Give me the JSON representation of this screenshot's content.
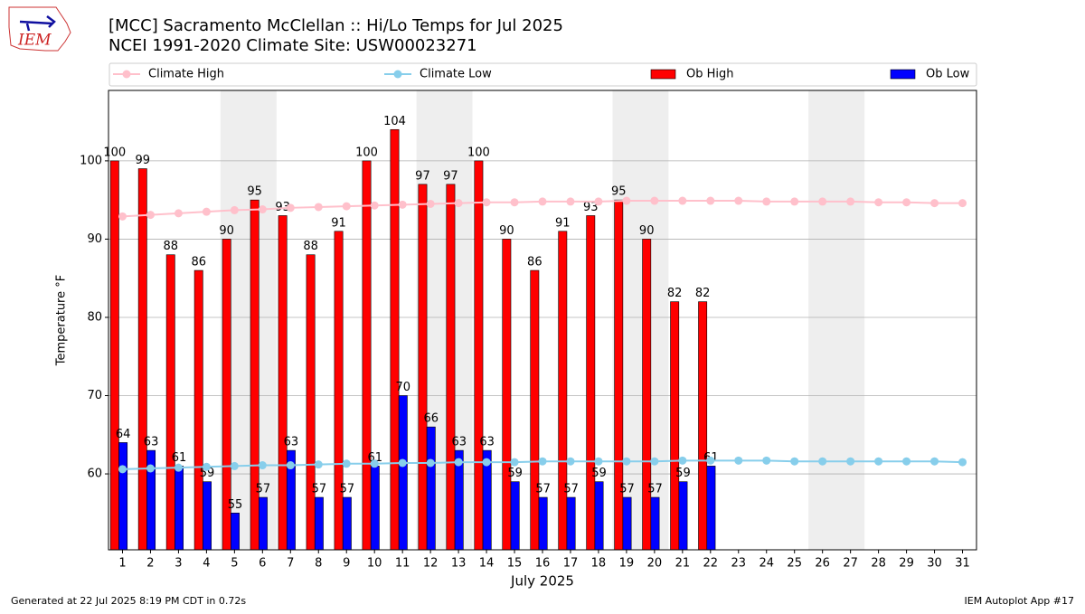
{
  "logo": {
    "text": "IEM"
  },
  "footer": {
    "left": "Generated at 22 Jul 2025 8:19 PM CDT in 0.72s",
    "right": "IEM Autoplot App #17"
  },
  "chart_data": {
    "type": "bar",
    "title": "[MCC] Sacramento McClellan :: Hi/Lo Temps for Jul 2025",
    "subtitle": "NCEI 1991-2020 Climate Site: USW00023271",
    "x_label": "July 2025",
    "y_label": "Temperature °F",
    "categories": [
      "1",
      "2",
      "3",
      "4",
      "5",
      "6",
      "7",
      "8",
      "9",
      "10",
      "11",
      "12",
      "13",
      "14",
      "15",
      "16",
      "17",
      "18",
      "19",
      "20",
      "21",
      "22",
      "23",
      "24",
      "25",
      "26",
      "27",
      "28",
      "29",
      "30",
      "31"
    ],
    "series": [
      {
        "name": "Climate High",
        "color": "#ffc0cb",
        "kind": "line",
        "values": [
          92.9,
          93.1,
          93.3,
          93.5,
          93.7,
          93.8,
          94.0,
          94.1,
          94.2,
          94.3,
          94.4,
          94.5,
          94.6,
          94.7,
          94.7,
          94.8,
          94.8,
          94.8,
          94.9,
          94.9,
          94.9,
          94.9,
          94.9,
          94.8,
          94.8,
          94.8,
          94.8,
          94.7,
          94.7,
          94.6,
          94.6
        ]
      },
      {
        "name": "Climate Low",
        "color": "#87ceeb",
        "kind": "line",
        "values": [
          60.6,
          60.7,
          60.8,
          60.9,
          61.0,
          61.1,
          61.1,
          61.2,
          61.3,
          61.3,
          61.4,
          61.4,
          61.5,
          61.5,
          61.5,
          61.6,
          61.6,
          61.6,
          61.6,
          61.6,
          61.7,
          61.7,
          61.7,
          61.7,
          61.6,
          61.6,
          61.6,
          61.6,
          61.6,
          61.6,
          61.5
        ]
      },
      {
        "name": "Ob High",
        "color": "#ff0000",
        "kind": "bar",
        "values": [
          100,
          99,
          88,
          86,
          90,
          95,
          93,
          88,
          91,
          100,
          104,
          97,
          97,
          100,
          90,
          86,
          91,
          93,
          95,
          90,
          82,
          82,
          null,
          null,
          null,
          null,
          null,
          null,
          null,
          null,
          null
        ]
      },
      {
        "name": "Ob Low",
        "color": "#0000ff",
        "kind": "bar",
        "values": [
          64,
          63,
          61,
          59,
          55,
          57,
          63,
          57,
          57,
          61,
          70,
          66,
          63,
          63,
          59,
          57,
          57,
          59,
          57,
          57,
          59,
          61,
          null,
          null,
          null,
          null,
          null,
          null,
          null,
          null,
          null
        ]
      }
    ],
    "shaded_days": [
      [
        5,
        6
      ],
      [
        12,
        13
      ],
      [
        19,
        20
      ],
      [
        26,
        27
      ]
    ],
    "ylim": [
      50.3,
      109
    ],
    "yticks": [
      60,
      70,
      80,
      90,
      100
    ],
    "grid": true,
    "legend": "top"
  }
}
